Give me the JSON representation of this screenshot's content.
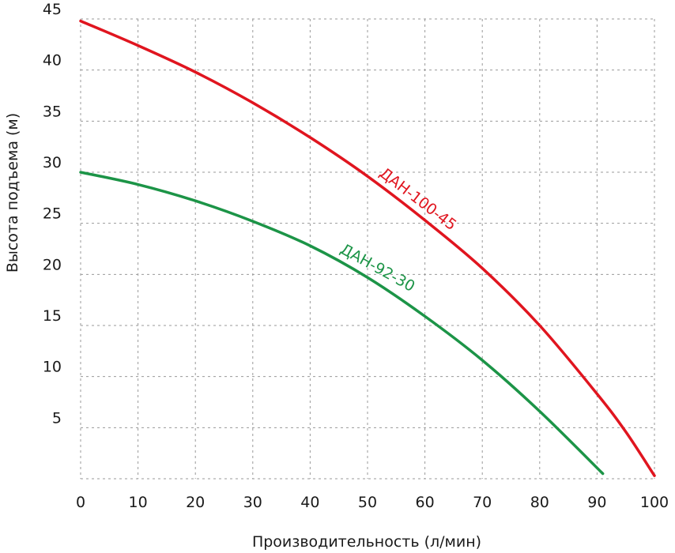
{
  "chart_data": {
    "type": "line",
    "xlabel": "Производительность (л/мин)",
    "ylabel": "Высота подъема (м)",
    "xlim": [
      0,
      100
    ],
    "ylim": [
      0,
      45
    ],
    "x_ticks": [
      0,
      10,
      20,
      30,
      40,
      50,
      60,
      70,
      80,
      90,
      100
    ],
    "y_ticks": [
      5,
      10,
      15,
      20,
      25,
      30,
      35,
      40,
      45
    ],
    "grid": true,
    "legend": "inline labels on curves",
    "series": [
      {
        "name": "ДАН-100-45",
        "color": "#e0151f",
        "x": [
          0,
          10,
          20,
          30,
          40,
          50,
          60,
          70,
          80,
          90,
          95,
          100
        ],
        "y": [
          44.8,
          42.4,
          39.8,
          36.8,
          33.4,
          29.6,
          25.3,
          20.6,
          15.0,
          8.3,
          4.6,
          0.3
        ]
      },
      {
        "name": "ДАН-92-30",
        "color": "#1c9447",
        "x": [
          0,
          10,
          20,
          30,
          40,
          50,
          60,
          70,
          80,
          91
        ],
        "y": [
          30.0,
          28.8,
          27.2,
          25.2,
          22.8,
          19.7,
          15.9,
          11.6,
          6.6,
          0.5
        ]
      }
    ]
  }
}
